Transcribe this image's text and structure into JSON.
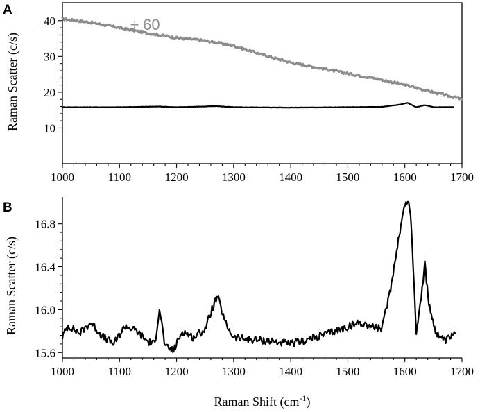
{
  "chart_data": [
    {
      "panel": "A",
      "type": "line",
      "xlabel": "",
      "ylabel": "Raman Scatter (c/s)",
      "xlim": [
        1000,
        1700
      ],
      "ylim": [
        0,
        45
      ],
      "xticks": [
        1000,
        1100,
        1200,
        1300,
        1400,
        1500,
        1600,
        1700
      ],
      "yticks": [
        10,
        20,
        30,
        40
      ],
      "annotation": "÷ 60",
      "colors": {
        "gray_series": "#8c8c8c",
        "black_series": "#000000"
      },
      "series": [
        {
          "color": "gray",
          "x": [
            1000,
            1050,
            1100,
            1150,
            1200,
            1250,
            1300,
            1350,
            1400,
            1450,
            1500,
            1550,
            1600,
            1650,
            1700
          ],
          "y": [
            40.5,
            39.5,
            38.0,
            36.5,
            35.2,
            34.4,
            33.0,
            30.5,
            28.3,
            26.8,
            25.2,
            23.8,
            22.0,
            20.0,
            18.0
          ]
        },
        {
          "color": "black",
          "x": [
            1000,
            1100,
            1170,
            1200,
            1270,
            1300,
            1400,
            1500,
            1560,
            1590,
            1605,
            1620,
            1635,
            1650,
            1685
          ],
          "y": [
            15.8,
            15.8,
            16.0,
            15.8,
            16.1,
            15.8,
            15.7,
            15.8,
            15.9,
            16.5,
            17.0,
            15.8,
            16.4,
            15.8,
            15.8
          ]
        }
      ]
    },
    {
      "panel": "B",
      "type": "line",
      "xlabel": "Raman Shift (cm⁻¹)",
      "ylabel": "Raman Scatter (c/s)",
      "xlim": [
        1000,
        1700
      ],
      "ylim": [
        15.55,
        17.05
      ],
      "xticks": [
        1000,
        1100,
        1200,
        1300,
        1400,
        1500,
        1600,
        1700
      ],
      "yticks": [
        15.6,
        16.0,
        16.4,
        16.8
      ],
      "series": [
        {
          "color": "black",
          "x": [
            1000,
            1010,
            1030,
            1050,
            1070,
            1090,
            1110,
            1130,
            1150,
            1162,
            1170,
            1180,
            1195,
            1210,
            1230,
            1250,
            1265,
            1272,
            1285,
            1300,
            1330,
            1360,
            1400,
            1430,
            1460,
            1490,
            1520,
            1545,
            1560,
            1575,
            1590,
            1600,
            1605,
            1610,
            1620,
            1627,
            1635,
            1642,
            1655,
            1670,
            1688
          ],
          "y": [
            15.75,
            15.85,
            15.78,
            15.88,
            15.75,
            15.68,
            15.85,
            15.8,
            15.7,
            15.68,
            16.02,
            15.65,
            15.62,
            15.8,
            15.74,
            15.82,
            16.05,
            16.12,
            15.88,
            15.74,
            15.72,
            15.71,
            15.68,
            15.72,
            15.77,
            15.82,
            15.88,
            15.84,
            15.82,
            16.2,
            16.7,
            16.98,
            17.02,
            16.9,
            15.8,
            16.05,
            16.42,
            16.05,
            15.78,
            15.7,
            15.78
          ]
        }
      ]
    }
  ],
  "panel_letters": {
    "a": "A",
    "b": "B"
  },
  "axis_titles": {
    "a_y": "Raman Scatter (c/s)",
    "b_y": "Raman Scatter (c/s)",
    "b_x_main": "Raman Shift (cm",
    "b_x_sup": "-1",
    "b_x_close": ")"
  }
}
